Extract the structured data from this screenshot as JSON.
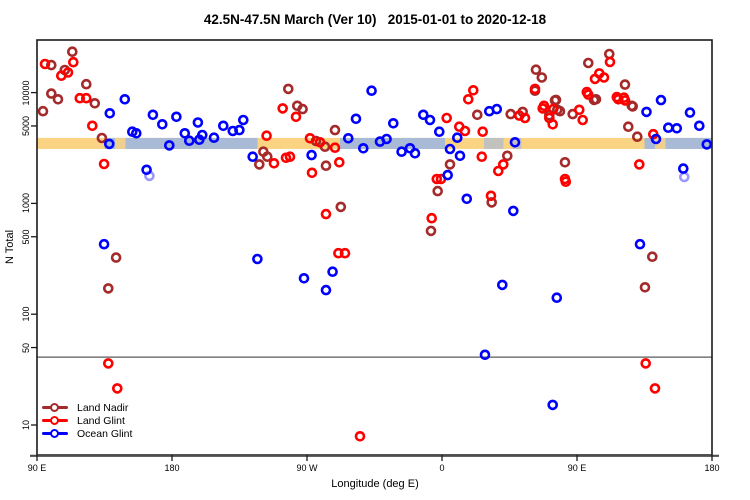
{
  "title": "42.5N-47.5N March (Ver 10)   2015-01-01 to 2020-12-18",
  "legend": [
    {
      "label": "Land Nadir",
      "color": "#A52A2A"
    },
    {
      "label": "Land Glint",
      "color": "#FF0000"
    },
    {
      "label": "Ocean Glint",
      "color": "#0000FF"
    }
  ],
  "chart_data": {
    "type": "scatter",
    "title": "42.5N-47.5N March (Ver 10)   2015-01-01 to 2020-12-18",
    "xlabel": "Longitude (deg E)",
    "ylabel": "N Total",
    "x_axis_note": "x values are degrees eastward along axis starting at 90E; axis spans 450 deg so 90E-180E data appears twice",
    "x_ticks": [
      {
        "deg": 0,
        "label": "90 E"
      },
      {
        "deg": 90,
        "label": "180"
      },
      {
        "deg": 180,
        "label": "90 W"
      },
      {
        "deg": 270,
        "label": "0"
      },
      {
        "deg": 360,
        "label": "90 E"
      },
      {
        "deg": 450,
        "label": "180"
      }
    ],
    "y_scale": "log",
    "y_ticks": [
      {
        "value": 10,
        "label": "10"
      },
      {
        "value": 50,
        "label": "50"
      },
      {
        "value": 100,
        "label": "100"
      },
      {
        "value": 500,
        "label": "500"
      },
      {
        "value": 1000,
        "label": "1000"
      },
      {
        "value": 5000,
        "label": "5000"
      },
      {
        "value": 10000,
        "label": "10000"
      }
    ],
    "threshold_line": {
      "value": 41,
      "color": "#5a5a5a"
    },
    "coast_band": {
      "note": "horizontal land/ocean strip near N=3100-3900",
      "value_range": [
        3100,
        3900
      ],
      "land_color": "#FBD483",
      "ocean_color": "#A8BAD6",
      "ocean_segments_deg": [
        [
          45,
          147
        ],
        [
          202,
          272
        ],
        [
          405,
          450
        ]
      ],
      "inland_sea_segments_deg": [
        [
          298,
          311
        ],
        [
          317,
          323
        ]
      ],
      "land_notches_deg": [
        [
          52,
          59
        ],
        [
          412,
          419
        ]
      ]
    },
    "grid": "off",
    "legend_position": "bottom-left",
    "series": [
      {
        "name": "Land Nadir",
        "color": "#A52A2A",
        "points": [
          [
            9.5,
            17700
          ],
          [
            23.5,
            23400
          ],
          [
            18.5,
            16000
          ],
          [
            32.9,
            11900
          ],
          [
            9.5,
            9800
          ],
          [
            14,
            8700
          ],
          [
            38.5,
            8000
          ],
          [
            4,
            6800
          ],
          [
            43.3,
            3890
          ],
          [
            167.5,
            10800
          ],
          [
            173.5,
            7600
          ],
          [
            177.1,
            7100
          ],
          [
            186,
            3660
          ],
          [
            192,
            3250
          ],
          [
            150.9,
            2930
          ],
          [
            153.5,
            2640
          ],
          [
            148.2,
            2250
          ],
          [
            192.7,
            2190
          ],
          [
            198.7,
            4590
          ],
          [
            202.5,
            930
          ],
          [
            52.7,
            324
          ],
          [
            47.5,
            171
          ],
          [
            267.1,
            1290
          ],
          [
            262.7,
            565
          ],
          [
            303.1,
            1020
          ],
          [
            410.2,
            330
          ],
          [
            405.3,
            175
          ],
          [
            293.5,
            6300
          ],
          [
            315.8,
            6400
          ],
          [
            323.8,
            6700
          ],
          [
            346,
            8600
          ],
          [
            348.7,
            6800
          ],
          [
            357.1,
            6400
          ],
          [
            372.7,
            8700
          ],
          [
            396.5,
            7600
          ],
          [
            394.2,
            4920
          ],
          [
            400.2,
            4000
          ],
          [
            352,
            2350
          ],
          [
            313.5,
            2690
          ],
          [
            275.3,
            2250
          ],
          [
            332.7,
            16100
          ],
          [
            336.5,
            13700
          ],
          [
            332,
            10400
          ],
          [
            345.3,
            8500
          ],
          [
            346.9,
            7000
          ],
          [
            341.5,
            6250
          ],
          [
            367.5,
            18500
          ],
          [
            381.5,
            22300
          ],
          [
            371.3,
            8600
          ],
          [
            392,
            11800
          ],
          [
            397.1,
            7500
          ]
        ]
      },
      {
        "name": "Land Glint",
        "color": "#FF0000",
        "points": [
          [
            5.3,
            18100
          ],
          [
            24.2,
            18800
          ],
          [
            16.2,
            14200
          ],
          [
            20.7,
            15200
          ],
          [
            28.5,
            8900
          ],
          [
            32.9,
            8900
          ],
          [
            36.9,
            5020
          ],
          [
            44.7,
            2270
          ],
          [
            163.8,
            7200
          ],
          [
            172.7,
            6050
          ],
          [
            153.1,
            4080
          ],
          [
            182,
            3870
          ],
          [
            188.7,
            3560
          ],
          [
            198.7,
            3180
          ],
          [
            168.7,
            2640
          ],
          [
            158,
            2300
          ],
          [
            166,
            2580
          ],
          [
            183.3,
            1890
          ],
          [
            201.5,
            2350
          ],
          [
            273.1,
            5900
          ],
          [
            281.5,
            4920
          ],
          [
            266.5,
            1660
          ],
          [
            192.7,
            800
          ],
          [
            200.9,
            355
          ],
          [
            205.3,
            355
          ],
          [
            47.5,
            36
          ],
          [
            53.5,
            21.4
          ],
          [
            215.3,
            7.9
          ],
          [
            269.3,
            1660
          ],
          [
            302.7,
            1170
          ],
          [
            263.1,
            735
          ],
          [
            352.5,
            1570
          ],
          [
            405.8,
            36
          ],
          [
            412,
            21.4
          ],
          [
            290.9,
            10500
          ],
          [
            287.5,
            8700
          ],
          [
            285.3,
            4500
          ],
          [
            297.1,
            4440
          ],
          [
            321.5,
            6200
          ],
          [
            325.3,
            5900
          ],
          [
            332,
            10800
          ],
          [
            338,
            7600
          ],
          [
            344.2,
            7100
          ],
          [
            341.5,
            5900
          ],
          [
            343.8,
            5180
          ],
          [
            363.8,
            5660
          ],
          [
            367.5,
            9600
          ],
          [
            387.5,
            8700
          ],
          [
            391.3,
            9000
          ],
          [
            410.9,
            4210
          ],
          [
            296.5,
            2640
          ],
          [
            310.9,
            2250
          ],
          [
            307.5,
            1960
          ],
          [
            401.5,
            2250
          ],
          [
            352,
            1660
          ],
          [
            337.1,
            7200
          ],
          [
            382,
            18900
          ],
          [
            374.9,
            14900
          ],
          [
            372,
            13300
          ],
          [
            378,
            13700
          ],
          [
            361.5,
            7000
          ],
          [
            366.5,
            10100
          ],
          [
            386.5,
            9100
          ],
          [
            392,
            8500
          ]
        ]
      },
      {
        "name": "Ocean Glint",
        "color": "#0000FF",
        "points": [
          [
            48.5,
            6500
          ],
          [
            58.5,
            8700
          ],
          [
            63.5,
            4440
          ],
          [
            66.2,
            4290
          ],
          [
            77.3,
            6300
          ],
          [
            83.5,
            5180
          ],
          [
            92.9,
            6050
          ],
          [
            98.5,
            4290
          ],
          [
            107.3,
            5370
          ],
          [
            110.2,
            4140
          ],
          [
            48.2,
            3440
          ],
          [
            88.2,
            3340
          ],
          [
            101.5,
            3680
          ],
          [
            108.2,
            3760
          ],
          [
            73.1,
            2010
          ],
          [
            137.5,
            5660
          ],
          [
            124.2,
            5020
          ],
          [
            130.5,
            4500
          ],
          [
            134.9,
            4590
          ],
          [
            118,
            3920
          ],
          [
            223.1,
            10400
          ],
          [
            212.7,
            5800
          ],
          [
            237.5,
            5280
          ],
          [
            257.5,
            6300
          ],
          [
            262,
            5660
          ],
          [
            268.2,
            4440
          ],
          [
            207.5,
            3870
          ],
          [
            228.7,
            3610
          ],
          [
            233.1,
            3810
          ],
          [
            183.1,
            2730
          ],
          [
            217.5,
            3140
          ],
          [
            243.1,
            2930
          ],
          [
            248.7,
            3140
          ],
          [
            252,
            2830
          ],
          [
            143.8,
            2640
          ],
          [
            44.7,
            428
          ],
          [
            146.9,
            315
          ],
          [
            178,
            211
          ],
          [
            197.1,
            242
          ],
          [
            192.7,
            165
          ],
          [
            74.9,
            1770,
            "faint"
          ],
          [
            273.8,
            1800
          ],
          [
            286.5,
            1100
          ],
          [
            317.5,
            855
          ],
          [
            402,
            428
          ],
          [
            431.5,
            1730,
            "faint"
          ],
          [
            310.2,
            184
          ],
          [
            346.5,
            141
          ],
          [
            298.7,
            43
          ],
          [
            343.8,
            15.2
          ],
          [
            301.5,
            6800
          ],
          [
            306.5,
            7100
          ],
          [
            406.3,
            6700
          ],
          [
            416,
            8550
          ],
          [
            435.3,
            6600
          ],
          [
            441.5,
            5020
          ],
          [
            420.9,
            4820
          ],
          [
            426.5,
            4760
          ],
          [
            412.7,
            3810
          ],
          [
            280.2,
            3920
          ],
          [
            318.7,
            3560
          ],
          [
            275.3,
            3100
          ],
          [
            282,
            2690
          ],
          [
            430.9,
            2060
          ],
          [
            446.5,
            3410
          ]
        ]
      }
    ]
  }
}
